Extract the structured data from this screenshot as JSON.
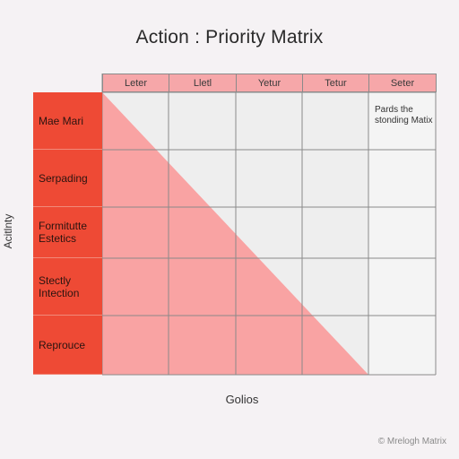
{
  "title": "Action : Priority Matrix",
  "columns": [
    "Leter",
    "Lletl",
    "Yetur",
    "Tetur",
    "Seter"
  ],
  "rows": [
    {
      "label": "Mae Mari"
    },
    {
      "label": "Serpading"
    },
    {
      "label": "Formitutte Estetics"
    },
    {
      "label": "Stectly Intection"
    },
    {
      "label": "Reprouce"
    }
  ],
  "corner_note": "Pards the stonding Matix",
  "axes": {
    "y_label": "Acitlnty",
    "x_label": "Golios"
  },
  "watermark": "© Mrelogh Matrix",
  "colors": {
    "background": "#f5f2f4",
    "header_fill": "#f6a7a9",
    "row_header_fill": "#ee4a35",
    "triangle_fill": "#f9a3a3",
    "cell_fill": "#eeeeee",
    "grid_line": "#8a8a8a"
  }
}
